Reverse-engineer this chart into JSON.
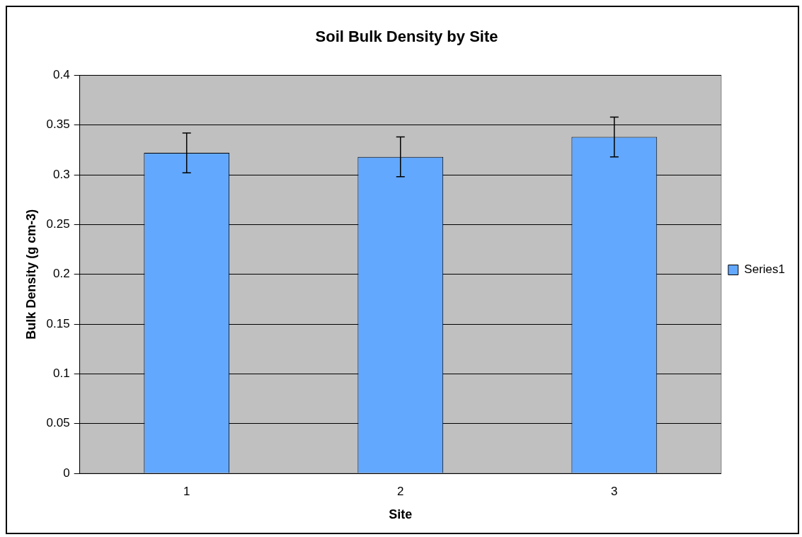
{
  "chart_data": {
    "type": "bar",
    "title": "Soil Bulk Density by Site",
    "xlabel": "Site",
    "ylabel": "Bulk Density (g cm-3)",
    "categories": [
      "1",
      "2",
      "3"
    ],
    "series": [
      {
        "name": "Series1",
        "color": "#63a8ff",
        "values": [
          0.322,
          0.318,
          0.338
        ],
        "errors": [
          0.02,
          0.02,
          0.02
        ]
      }
    ],
    "ylim": [
      0,
      0.4
    ],
    "yticks": [
      0,
      0.05,
      0.1,
      0.15,
      0.2,
      0.25,
      0.3,
      0.35,
      0.4
    ],
    "grid": "y",
    "legend": "right"
  }
}
